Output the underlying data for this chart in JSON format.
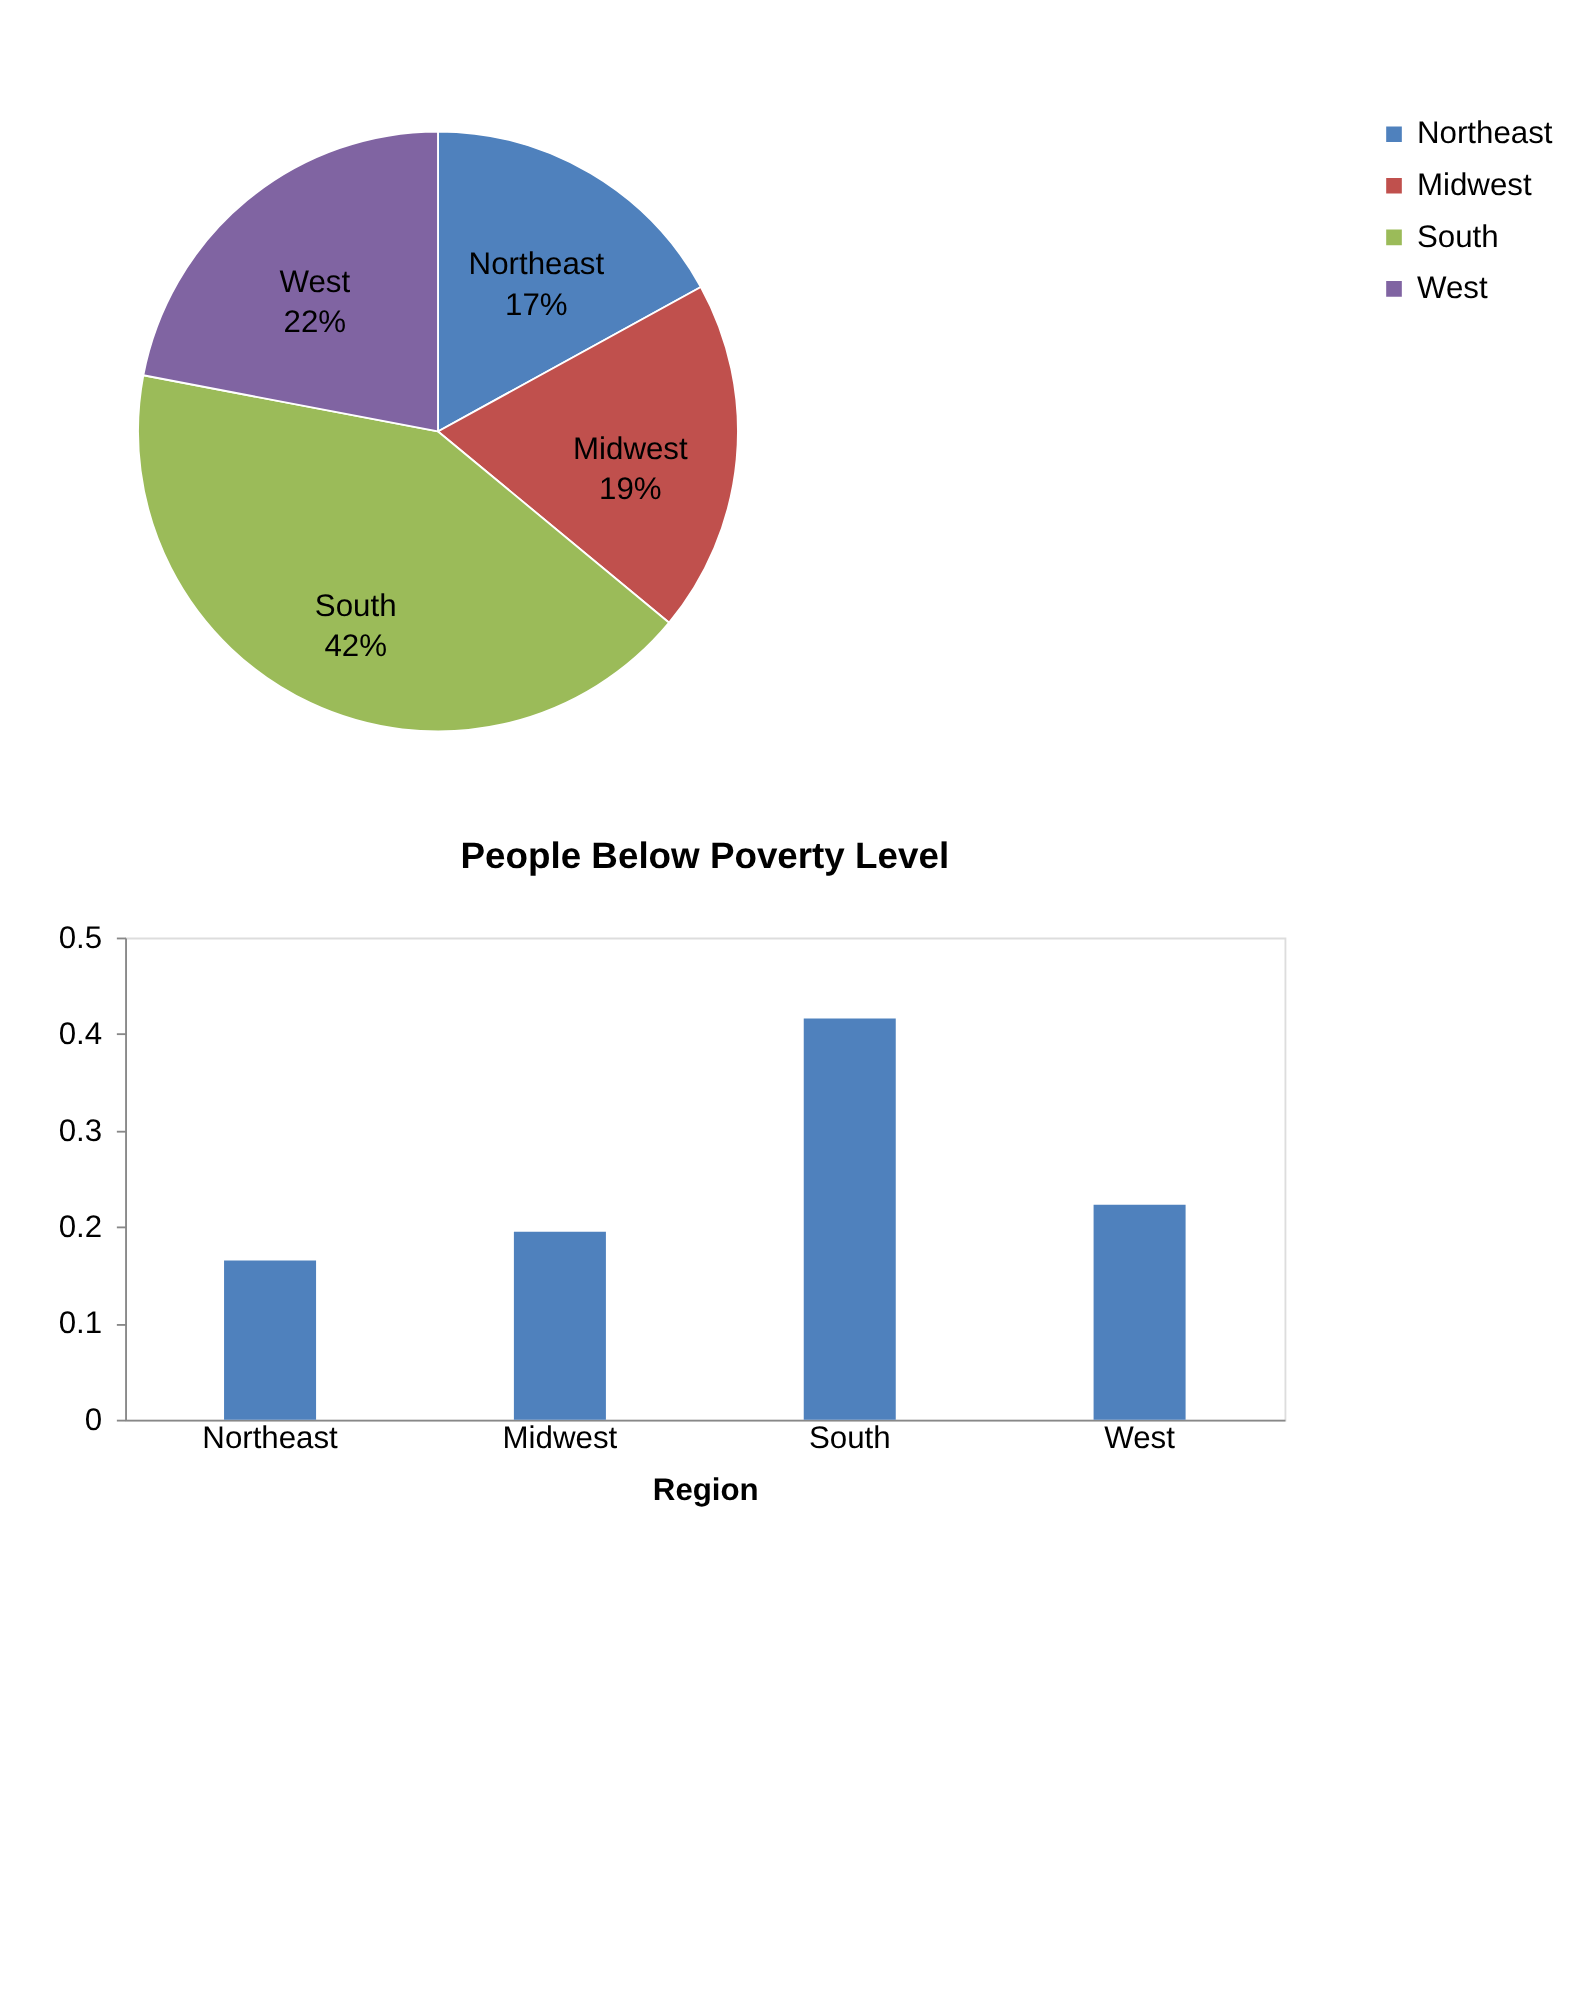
{
  "chart_data": [
    {
      "type": "pie",
      "categories": [
        "Northeast",
        "Midwest",
        "South",
        "West"
      ],
      "values": [
        17,
        19,
        42,
        22
      ],
      "value_labels": [
        "17%",
        "19%",
        "42%",
        "22%"
      ],
      "colors": [
        "#4f81bd",
        "#c0504d",
        "#9bbb59",
        "#8064a2"
      ],
      "legend": "right"
    },
    {
      "type": "bar",
      "title": "People Below Poverty Level",
      "xlabel": "Region",
      "categories": [
        "Northeast",
        "Midwest",
        "South",
        "West"
      ],
      "values": [
        0.165,
        0.195,
        0.416,
        0.223
      ],
      "color": "#4f81bd",
      "ylim": [
        0,
        0.5
      ],
      "yticks": [
        0,
        0.1,
        0.2,
        0.3,
        0.4,
        0.5
      ],
      "grid": false
    }
  ]
}
